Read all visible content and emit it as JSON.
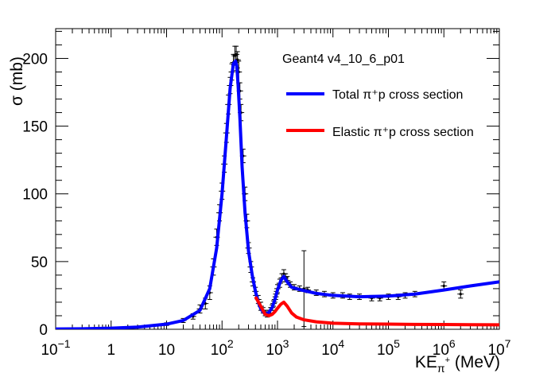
{
  "chart_data": {
    "type": "line",
    "annotation": "Geant4 v4_10_6_p01",
    "ylabel": "σ (mb)",
    "xlabel": {
      "base": "KE",
      "sub": "π",
      "sup": "+",
      "unit": " (MeV)"
    },
    "x_scale": "log",
    "xlim": [
      0.1,
      10000000
    ],
    "ylim": [
      0,
      222
    ],
    "x_ticks": [
      {
        "v": 0.1,
        "base": "10",
        "exp": "−1"
      },
      {
        "v": 1,
        "base": "1",
        "exp": ""
      },
      {
        "v": 10,
        "base": "10",
        "exp": ""
      },
      {
        "v": 100,
        "base": "10",
        "exp": "2"
      },
      {
        "v": 1000,
        "base": "10",
        "exp": "3"
      },
      {
        "v": 10000,
        "base": "10",
        "exp": "4"
      },
      {
        "v": 100000,
        "base": "10",
        "exp": "5"
      },
      {
        "v": 1000000,
        "base": "10",
        "exp": "6"
      },
      {
        "v": 10000000,
        "base": "10",
        "exp": "7"
      }
    ],
    "y_ticks": [
      0,
      50,
      100,
      150,
      200
    ],
    "legend": {
      "position": "top-right"
    },
    "series": [
      {
        "name": "Total π⁺p cross section",
        "color": "#0000ff",
        "x": [
          0.1,
          0.3,
          1,
          3,
          10,
          20,
          40,
          60,
          80,
          100,
          120,
          140,
          160,
          175,
          185,
          195,
          210,
          230,
          260,
          300,
          350,
          400,
          450,
          500,
          600,
          700,
          800,
          900,
          1000,
          1150,
          1300,
          1500,
          1800,
          2200,
          3000,
          5000,
          10000,
          30000,
          100000,
          300000,
          1000000,
          3000000,
          10000000
        ],
        "y": [
          0.2,
          0.4,
          0.8,
          1.6,
          3.8,
          6.5,
          14,
          30,
          60,
          100,
          142,
          178,
          196,
          198,
          194,
          180,
          156,
          120,
          86,
          58,
          40,
          28,
          20,
          15,
          11,
          12.5,
          16,
          22,
          29,
          36,
          39,
          35,
          31,
          30,
          28.5,
          26.5,
          25,
          24,
          24.5,
          26,
          29,
          32,
          35
        ]
      },
      {
        "name": "Elastic π⁺p cross section",
        "color": "#ff0000",
        "x": [
          400,
          500,
          600,
          700,
          800,
          900,
          1000,
          1150,
          1300,
          1500,
          1800,
          2200,
          3000,
          5000,
          10000,
          30000,
          100000,
          300000,
          1000000,
          3000000,
          10000000
        ],
        "y": [
          24,
          17,
          11,
          10,
          11,
          13,
          15.5,
          18.5,
          20,
          17,
          12,
          9,
          7,
          5.5,
          4.5,
          4,
          3.8,
          3.6,
          3.5,
          3.4,
          3.3
        ]
      }
    ],
    "data_points": {
      "x": [
        1,
        3,
        10,
        20,
        30,
        40,
        50,
        60,
        70,
        80,
        90,
        100,
        110,
        120,
        130,
        140,
        150,
        160,
        170,
        180,
        190,
        200,
        210,
        220,
        240,
        260,
        280,
        300,
        330,
        360,
        400,
        450,
        500,
        550,
        600,
        650,
        700,
        750,
        800,
        850,
        900,
        950,
        1000,
        1100,
        1200,
        1300,
        1400,
        1500,
        1700,
        2000,
        2500,
        3000,
        3500,
        5000,
        7000,
        10000,
        15000,
        20000,
        30000,
        50000,
        70000,
        100000,
        150000,
        200000,
        300000,
        1000000,
        2000000
      ],
      "y": [
        0.8,
        1.6,
        3.8,
        6.5,
        9.5,
        15,
        19,
        27,
        46,
        68,
        86,
        102,
        122,
        145,
        166,
        180,
        190,
        197,
        202,
        203,
        199,
        190,
        176,
        160,
        128,
        100,
        80,
        60,
        46,
        35,
        28,
        22,
        17,
        14,
        12,
        11,
        12,
        14,
        16,
        19,
        22,
        26,
        30,
        34,
        38,
        41,
        38,
        36,
        33,
        31,
        30,
        30,
        29,
        27,
        26,
        25,
        25,
        24,
        24,
        23,
        23,
        24,
        24,
        25,
        26,
        32,
        26
      ],
      "err": [
        0.3,
        0.4,
        1,
        1.5,
        2,
        3,
        4,
        5,
        6,
        6,
        6,
        6,
        6,
        7,
        7,
        6,
        6,
        6,
        7,
        6,
        6,
        8,
        6,
        6,
        5,
        5,
        5,
        4,
        4,
        3,
        3,
        3,
        3,
        2,
        2,
        2,
        2,
        2,
        2,
        2,
        2,
        2,
        3,
        3,
        3,
        3,
        3,
        3,
        2,
        2,
        2,
        28,
        2,
        2,
        2,
        2,
        2,
        2,
        2,
        2,
        2,
        2,
        2,
        2,
        2,
        3,
        3
      ]
    }
  }
}
